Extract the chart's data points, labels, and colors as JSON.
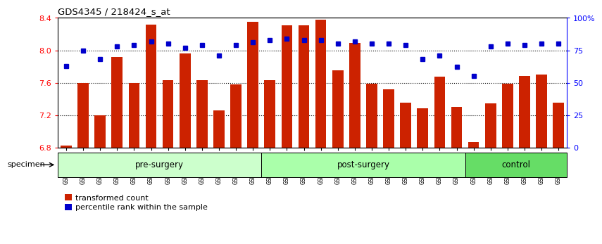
{
  "title": "GDS4345 / 218424_s_at",
  "samples": [
    "GSM842012",
    "GSM842013",
    "GSM842014",
    "GSM842015",
    "GSM842016",
    "GSM842017",
    "GSM842018",
    "GSM842019",
    "GSM842020",
    "GSM842021",
    "GSM842022",
    "GSM842023",
    "GSM842024",
    "GSM842025",
    "GSM842026",
    "GSM842027",
    "GSM842028",
    "GSM842029",
    "GSM842030",
    "GSM842031",
    "GSM842032",
    "GSM842033",
    "GSM842034",
    "GSM842035",
    "GSM842036",
    "GSM842037",
    "GSM842038",
    "GSM842039",
    "GSM842040",
    "GSM842041"
  ],
  "bar_values": [
    6.82,
    7.6,
    7.2,
    7.92,
    7.6,
    8.32,
    7.63,
    7.96,
    7.63,
    7.26,
    7.58,
    8.35,
    7.63,
    8.31,
    8.31,
    8.38,
    7.75,
    8.09,
    7.59,
    7.52,
    7.35,
    7.28,
    7.67,
    7.3,
    6.87,
    7.34,
    7.59,
    7.68,
    7.7,
    7.35
  ],
  "percentile_values": [
    63,
    75,
    68,
    78,
    79,
    82,
    80,
    77,
    79,
    71,
    79,
    81,
    83,
    84,
    83,
    83,
    80,
    82,
    80,
    80,
    79,
    68,
    71,
    62,
    55,
    78,
    80,
    79,
    80,
    80
  ],
  "groups": [
    {
      "label": "pre-surgery",
      "start": 0,
      "end": 11,
      "color": "#ccffcc"
    },
    {
      "label": "post-surgery",
      "start": 12,
      "end": 23,
      "color": "#aaffaa"
    },
    {
      "label": "control",
      "start": 24,
      "end": 29,
      "color": "#66dd66"
    }
  ],
  "bar_color": "#cc2200",
  "dot_color": "#0000cc",
  "ylim_left": [
    6.8,
    8.4
  ],
  "ylim_right": [
    0,
    100
  ],
  "yticks_left": [
    6.8,
    7.2,
    7.6,
    8.0,
    8.4
  ],
  "yticks_right": [
    0,
    25,
    50,
    75,
    100
  ],
  "ytick_labels_right": [
    "0",
    "25",
    "50",
    "75",
    "100%"
  ],
  "grid_values": [
    7.2,
    7.6,
    8.0
  ],
  "baseline": 6.8
}
